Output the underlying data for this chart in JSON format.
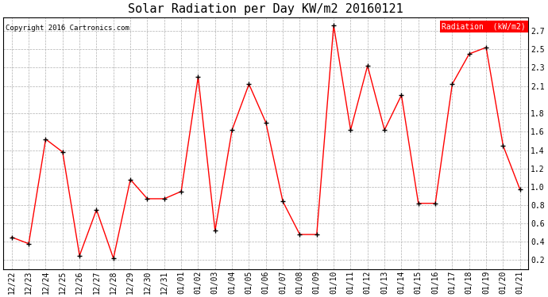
{
  "title": "Solar Radiation per Day KW/m2 20160121",
  "copyright": "Copyright 2016 Cartronics.com",
  "legend_label": "Radiation  (kW/m2)",
  "dates": [
    "12/22",
    "12/23",
    "12/24",
    "12/25",
    "12/26",
    "12/27",
    "12/28",
    "12/29",
    "12/30",
    "12/31",
    "01/01",
    "01/02",
    "01/03",
    "01/04",
    "01/05",
    "01/06",
    "01/07",
    "01/08",
    "01/09",
    "01/10",
    "01/11",
    "01/12",
    "01/13",
    "01/14",
    "01/15",
    "01/16",
    "01/17",
    "01/18",
    "01/19",
    "01/20",
    "01/21"
  ],
  "values": [
    0.45,
    0.38,
    1.52,
    1.38,
    0.25,
    0.75,
    0.22,
    1.08,
    0.87,
    0.87,
    0.95,
    2.2,
    0.52,
    1.62,
    2.12,
    1.7,
    0.84,
    0.48,
    0.48,
    2.76,
    1.62,
    2.32,
    1.62,
    2.0,
    0.82,
    0.82,
    2.12,
    2.45,
    2.52,
    1.45,
    0.97
  ],
  "line_color": "red",
  "marker_color": "black",
  "background_color": "#ffffff",
  "grid_color": "#b0b0b0",
  "title_fontsize": 11,
  "tick_fontsize": 7,
  "copyright_fontsize": 6.5,
  "legend_fontsize": 7,
  "ylim": [
    0.1,
    2.85
  ],
  "ytick_positions": [
    0.2,
    0.4,
    0.6,
    0.8,
    1.0,
    1.2,
    1.4,
    1.6,
    1.8,
    2.1,
    2.3,
    2.5,
    2.7
  ],
  "ytick_labels": [
    "0.2",
    "0.4",
    "0.6",
    "0.8",
    "1.0",
    "1.2",
    "1.4",
    "1.6",
    "1.8",
    "2.1",
    "2.3",
    "2.5",
    "2.7"
  ]
}
